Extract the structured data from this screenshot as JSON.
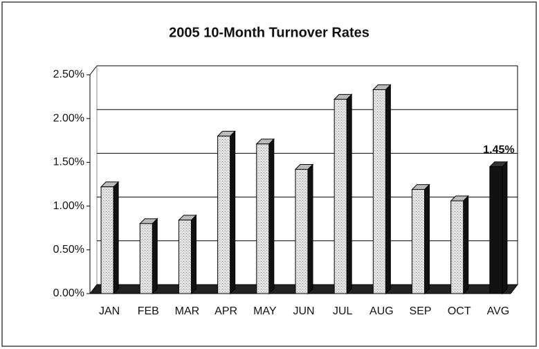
{
  "chart_data": {
    "type": "bar",
    "title": "2005 10-Month Turnover Rates",
    "categories": [
      "JAN",
      "FEB",
      "MAR",
      "APR",
      "MAY",
      "JUN",
      "JUL",
      "AUG",
      "SEP",
      "OCT",
      "AVG"
    ],
    "values": [
      1.22,
      0.8,
      0.84,
      1.8,
      1.71,
      1.42,
      2.22,
      2.33,
      1.19,
      1.06,
      1.45
    ],
    "value_labels": [
      null,
      null,
      null,
      null,
      null,
      null,
      null,
      null,
      null,
      null,
      "1.45%"
    ],
    "colors": [
      "#d9d9d9",
      "#d9d9d9",
      "#d9d9d9",
      "#d9d9d9",
      "#d9d9d9",
      "#d9d9d9",
      "#d9d9d9",
      "#d9d9d9",
      "#d9d9d9",
      "#d9d9d9",
      "#111111"
    ],
    "ylim": [
      0,
      2.5
    ],
    "yticks": [
      {
        "value": 0,
        "label": "0.00%"
      },
      {
        "value": 0.5,
        "label": "0.50%"
      },
      {
        "value": 1,
        "label": "1.00%"
      },
      {
        "value": 1.5,
        "label": "1.50%"
      },
      {
        "value": 2,
        "label": "2.00%"
      },
      {
        "value": 2.5,
        "label": "2.50%"
      }
    ],
    "grid": true
  }
}
